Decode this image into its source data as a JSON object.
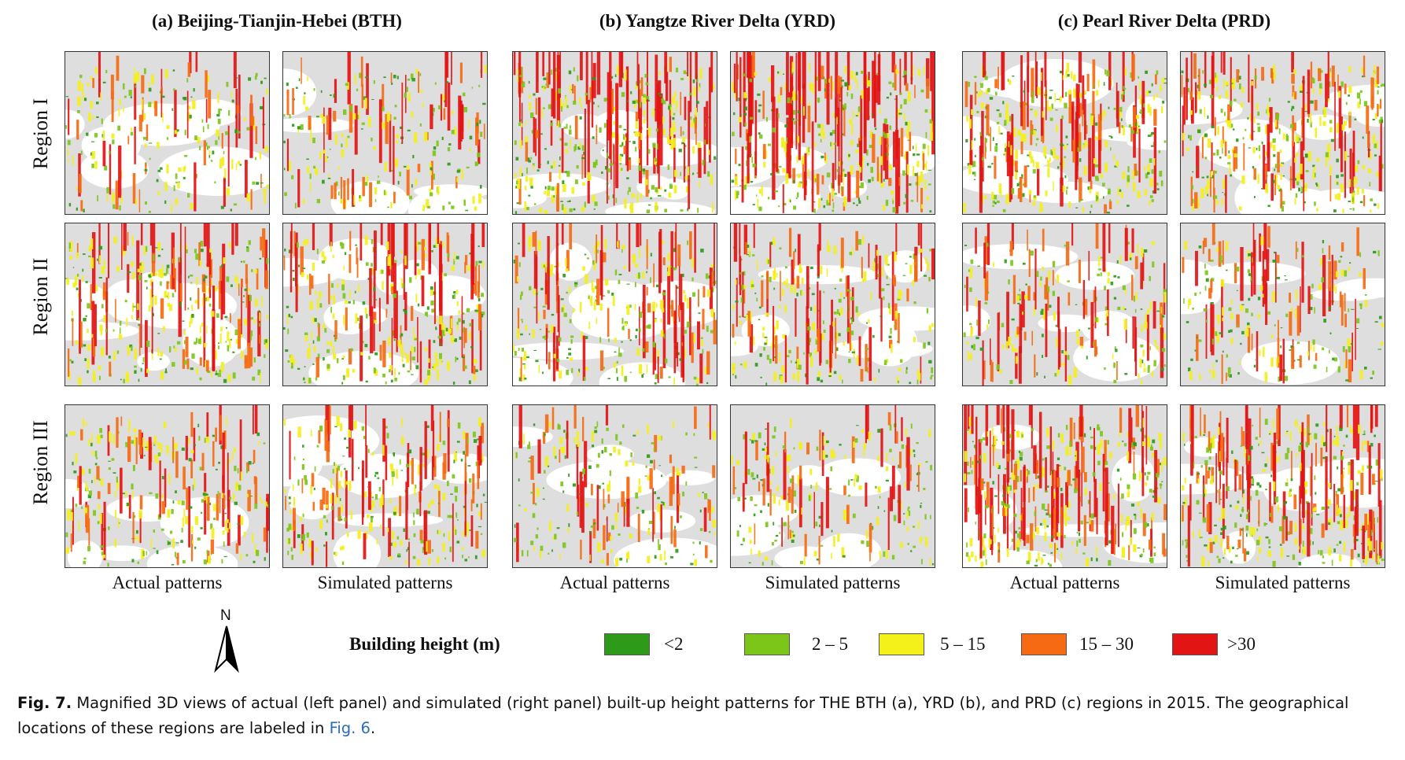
{
  "figure": {
    "region_titles": [
      "(a) Beijing-Tianjin-Hebei (BTH)",
      "(b) Yangtze River Delta (YRD)",
      "(c) Pearl River Delta (PRD)"
    ],
    "row_labels": [
      "Region I",
      "Region II",
      "Region III"
    ],
    "column_labels": {
      "actual": "Actual patterns",
      "simulated": "Simulated patterns"
    },
    "north_arrow": {
      "letter": "N",
      "icon": "north-arrow-icon"
    },
    "legend": {
      "title": "Building height (m)",
      "items": [
        {
          "label": "<2",
          "color": "#2e9a1a"
        },
        {
          "label": "2 – 5",
          "color": "#7cc61a"
        },
        {
          "label": "5 – 15",
          "color": "#f3f01a"
        },
        {
          "label": "15 – 30",
          "color": "#f56a12"
        },
        {
          "label": ">30",
          "color": "#e31414"
        }
      ]
    },
    "panel_background": "#dedede"
  },
  "caption": {
    "label": "Fig. 7.",
    "text_before": "Magnified 3D views of actual (left panel) and simulated (right panel) built-up height patterns for THE BTH (a), YRD (b), and PRD (c) regions in 2015. The geographical locations of these regions are labeled in ",
    "link_text": "Fig. 6",
    "text_after": "."
  }
}
